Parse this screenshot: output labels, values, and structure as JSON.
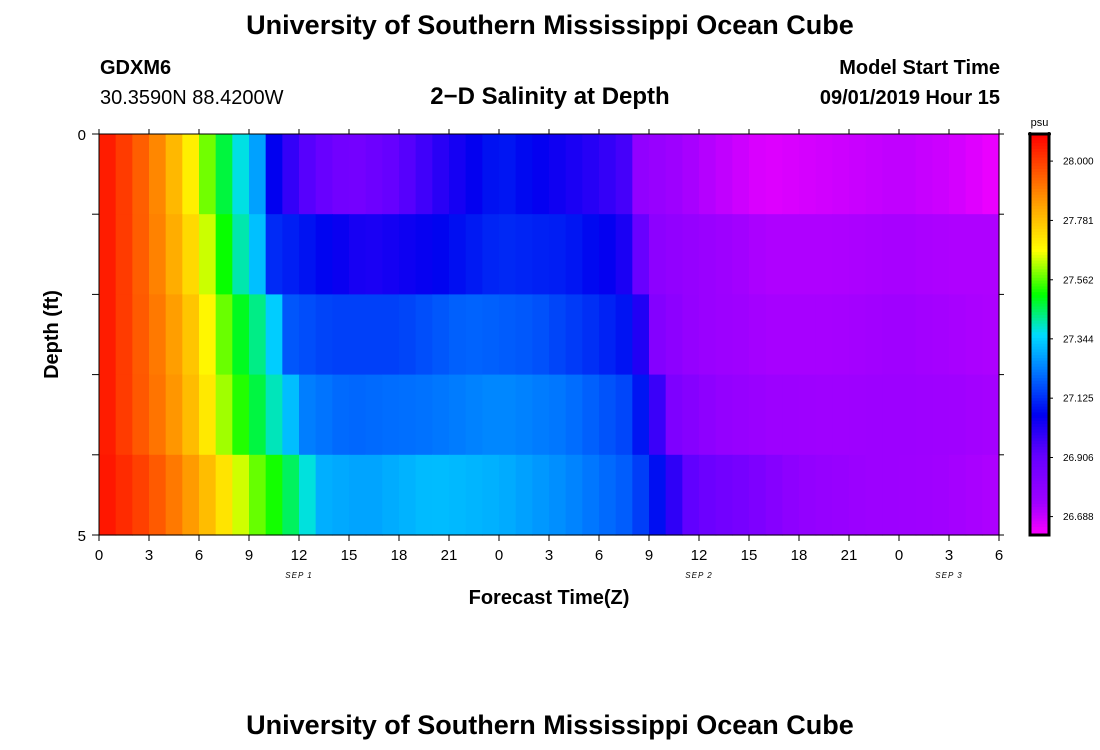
{
  "header": {
    "title": "University of Southern Mississippi Ocean Cube",
    "station": "GDXM6",
    "coords": "30.3590N 88.4200W",
    "plot_title": "2−D Salinity at Depth",
    "model_label": "Model Start Time",
    "model_time": "09/01/2019 Hour 15"
  },
  "footer": {
    "title": "University of Southern Mississippi Ocean Cube"
  },
  "chart_data": {
    "type": "heatmap",
    "title": "2−D Salinity at Depth",
    "xlabel": "Forecast Time(Z)",
    "ylabel": "Depth (ft)",
    "xlim": [
      0,
      54
    ],
    "ylim": [
      0,
      5
    ],
    "x_tick_labels": [
      "0",
      "3",
      "6",
      "9",
      "12",
      "15",
      "18",
      "21",
      "0",
      "3",
      "6",
      "9",
      "12",
      "15",
      "18",
      "21",
      "0",
      "3",
      "6"
    ],
    "y_tick_labels": [
      "0",
      "5"
    ],
    "date_labels": [
      {
        "text": "SEP 1",
        "hour": 12
      },
      {
        "text": "SEP 2",
        "hour": 36
      },
      {
        "text": "SEP 3",
        "hour": 51
      }
    ],
    "colorbar": {
      "unit": "psu",
      "vmin": 26.62,
      "vmax": 28.1,
      "tick_values": [
        28.0,
        27.781,
        27.562,
        27.344,
        27.125,
        26.906,
        26.688
      ],
      "tick_labels": [
        "28.000",
        "27.781",
        "27.562",
        "27.344",
        "27.125",
        "26.906",
        "26.688"
      ]
    },
    "depth_layers": [
      "0-1 ft",
      "1-2 ft",
      "2-3 ft",
      "3-4 ft",
      "4-5 ft"
    ],
    "series": [
      {
        "name": "0-1 ft",
        "keypoints": [
          [
            0,
            28.08
          ],
          [
            2,
            27.98
          ],
          [
            4,
            27.85
          ],
          [
            5.5,
            27.7
          ],
          [
            7,
            27.52
          ],
          [
            9.5,
            27.28
          ],
          [
            10,
            27.1
          ],
          [
            12,
            26.95
          ],
          [
            15,
            26.86
          ],
          [
            18,
            26.92
          ],
          [
            21,
            27.02
          ],
          [
            24,
            27.1
          ],
          [
            27,
            27.05
          ],
          [
            30,
            27.0
          ],
          [
            32,
            26.95
          ],
          [
            32.5,
            26.78
          ],
          [
            36,
            26.72
          ],
          [
            40,
            26.66
          ],
          [
            44,
            26.68
          ],
          [
            48,
            26.7
          ],
          [
            51,
            26.68
          ],
          [
            54,
            26.64
          ]
        ]
      },
      {
        "name": "1-2 ft",
        "keypoints": [
          [
            0,
            28.08
          ],
          [
            2,
            27.98
          ],
          [
            4,
            27.86
          ],
          [
            6,
            27.7
          ],
          [
            8,
            27.45
          ],
          [
            10,
            27.28
          ],
          [
            10.5,
            27.12
          ],
          [
            13,
            27.08
          ],
          [
            16,
            27.02
          ],
          [
            20,
            27.06
          ],
          [
            24,
            27.12
          ],
          [
            28,
            27.1
          ],
          [
            31,
            27.05
          ],
          [
            32,
            27.0
          ],
          [
            33,
            26.8
          ],
          [
            36,
            26.76
          ],
          [
            40,
            26.72
          ],
          [
            44,
            26.72
          ],
          [
            48,
            26.73
          ],
          [
            51,
            26.72
          ],
          [
            54,
            26.72
          ]
        ]
      },
      {
        "name": "2-3 ft",
        "keypoints": [
          [
            0,
            28.08
          ],
          [
            2,
            27.98
          ],
          [
            4,
            27.88
          ],
          [
            6,
            27.74
          ],
          [
            8,
            27.52
          ],
          [
            10,
            27.4
          ],
          [
            11,
            27.28
          ],
          [
            11.5,
            27.18
          ],
          [
            14,
            27.15
          ],
          [
            18,
            27.15
          ],
          [
            22,
            27.2
          ],
          [
            26,
            27.18
          ],
          [
            30,
            27.12
          ],
          [
            32,
            27.08
          ],
          [
            33,
            26.95
          ],
          [
            33.5,
            26.82
          ],
          [
            36,
            26.76
          ],
          [
            40,
            26.73
          ],
          [
            44,
            26.73
          ],
          [
            48,
            26.74
          ],
          [
            51,
            26.73
          ],
          [
            54,
            26.72
          ]
        ]
      },
      {
        "name": "3-4 ft",
        "keypoints": [
          [
            0,
            28.08
          ],
          [
            2,
            27.98
          ],
          [
            4,
            27.89
          ],
          [
            6,
            27.76
          ],
          [
            8,
            27.56
          ],
          [
            10,
            27.44
          ],
          [
            11.5,
            27.32
          ],
          [
            12,
            27.24
          ],
          [
            15,
            27.2
          ],
          [
            20,
            27.22
          ],
          [
            24,
            27.25
          ],
          [
            28,
            27.22
          ],
          [
            32,
            27.15
          ],
          [
            34,
            26.92
          ],
          [
            34.5,
            26.84
          ],
          [
            37,
            26.78
          ],
          [
            40,
            26.75
          ],
          [
            44,
            26.74
          ],
          [
            48,
            26.75
          ],
          [
            51,
            26.74
          ],
          [
            54,
            26.73
          ]
        ]
      },
      {
        "name": "4-5 ft",
        "keypoints": [
          [
            0,
            28.08
          ],
          [
            3,
            27.98
          ],
          [
            5,
            27.88
          ],
          [
            7,
            27.76
          ],
          [
            9,
            27.6
          ],
          [
            10.5,
            27.52
          ],
          [
            12,
            27.42
          ],
          [
            13.5,
            27.3
          ],
          [
            16,
            27.28
          ],
          [
            20,
            27.32
          ],
          [
            24,
            27.3
          ],
          [
            28,
            27.25
          ],
          [
            32,
            27.18
          ],
          [
            34,
            27.05
          ],
          [
            35,
            26.94
          ],
          [
            36,
            26.9
          ],
          [
            39,
            26.85
          ],
          [
            42,
            26.78
          ],
          [
            46,
            26.75
          ],
          [
            50,
            26.74
          ],
          [
            54,
            26.72
          ]
        ]
      }
    ]
  }
}
